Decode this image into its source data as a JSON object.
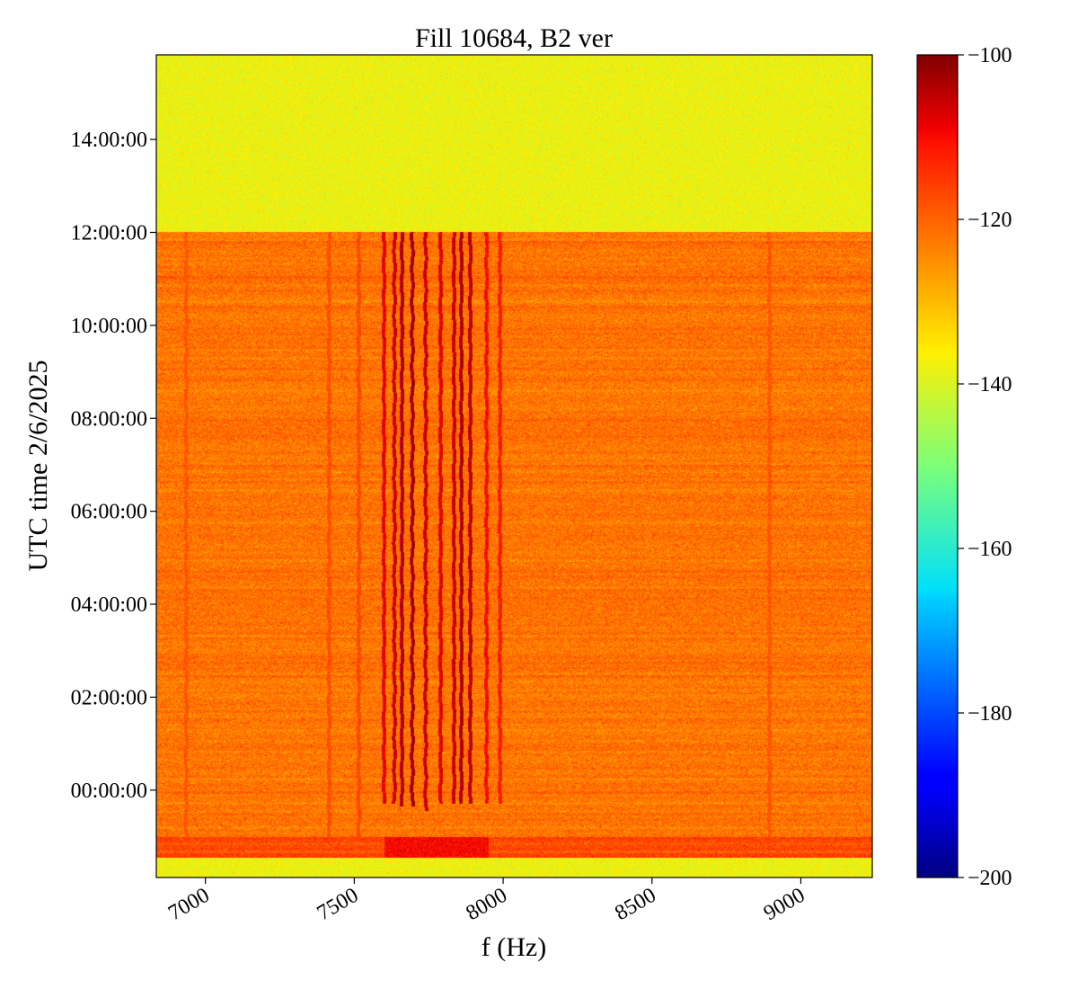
{
  "chart_data": {
    "type": "heatmap",
    "title": "Fill 10684, B2 ver",
    "xlabel": "f (Hz)",
    "ylabel": "UTC time 2/6/2025",
    "xlim": [
      6835,
      9240
    ],
    "ylim_hours": [
      -1.88,
      15.82
    ],
    "x_ticks": [
      7000,
      7500,
      8000,
      8500,
      9000
    ],
    "x_tick_labels": [
      "7000",
      "7500",
      "8000",
      "8500",
      "9000"
    ],
    "y_ticks_hours": [
      0,
      2,
      4,
      6,
      8,
      10,
      12,
      14
    ],
    "y_tick_labels": [
      "00:00:00",
      "02:00:00",
      "04:00:00",
      "06:00:00",
      "08:00:00",
      "10:00:00",
      "12:00:00",
      "14:00:00"
    ],
    "colorbar": {
      "cmap": "jet",
      "range": [
        -200,
        -100
      ],
      "ticks": [
        -100,
        -120,
        -140,
        -160,
        -180,
        -200
      ],
      "tick_labels": [
        "−100",
        "−120",
        "−140",
        "−160",
        "−180",
        "−200"
      ]
    },
    "regions": [
      {
        "name": "no-beam-late",
        "t_start": 12.0,
        "t_end": 15.82,
        "level_db": -138
      },
      {
        "name": "beam",
        "t_start": -1.0,
        "t_end": 12.0,
        "level_db": -122
      },
      {
        "name": "injection-band",
        "t_start": -1.45,
        "t_end": -1.0,
        "level_db": -117
      },
      {
        "name": "no-beam-early",
        "t_start": -1.88,
        "t_end": -1.45,
        "level_db": -138
      }
    ],
    "lines_hz": [
      {
        "f": 7600,
        "level_db": -108,
        "t_start": -0.3
      },
      {
        "f": 7635,
        "level_db": -106,
        "t_start": -0.3
      },
      {
        "f": 7660,
        "level_db": -104,
        "t_start": -0.35
      },
      {
        "f": 7695,
        "level_db": -103,
        "t_start": -0.35
      },
      {
        "f": 7740,
        "level_db": -106,
        "t_start": -0.45
      },
      {
        "f": 7790,
        "level_db": -108,
        "t_start": -0.3
      },
      {
        "f": 7835,
        "level_db": -106,
        "t_start": -0.3
      },
      {
        "f": 7860,
        "level_db": -104,
        "t_start": -0.3
      },
      {
        "f": 7890,
        "level_db": -105,
        "t_start": -0.3
      },
      {
        "f": 7945,
        "level_db": -110,
        "t_start": -0.3
      },
      {
        "f": 7990,
        "level_db": -112,
        "t_start": -0.3
      },
      {
        "f": 7515,
        "level_db": -117,
        "t_start": -1.0
      },
      {
        "f": 7415,
        "level_db": -118,
        "t_start": -1.0
      },
      {
        "f": 8895,
        "level_db": -119,
        "t_start": -1.0
      },
      {
        "f": 6935,
        "level_db": -119,
        "t_start": -1.0
      }
    ]
  }
}
